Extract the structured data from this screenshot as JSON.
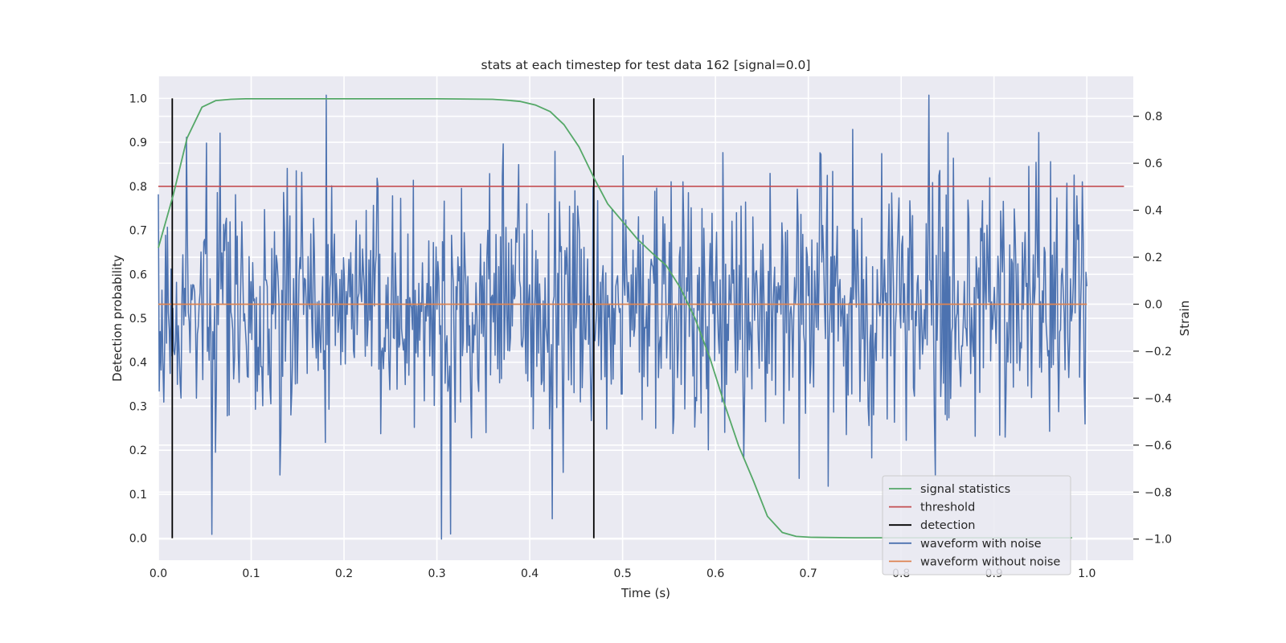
{
  "chart_data": {
    "type": "line",
    "title": "stats at each timestep for test data 162 [signal=0.0]",
    "xlabel": "Time (s)",
    "ylabel_left": "Detection probability",
    "ylabel_right": "Strain",
    "xlim": [
      0.0,
      1.05
    ],
    "ylim_left": [
      -0.05,
      1.05
    ],
    "ylim_right": [
      -1.09,
      0.97
    ],
    "x_ticks": [
      "0.0",
      "0.1",
      "0.2",
      "0.3",
      "0.4",
      "0.5",
      "0.6",
      "0.7",
      "0.8",
      "0.9",
      "1.0"
    ],
    "y_ticks_left": [
      "0.0",
      "0.1",
      "0.2",
      "0.3",
      "0.4",
      "0.5",
      "0.6",
      "0.7",
      "0.8",
      "0.9",
      "1.0"
    ],
    "y_ticks_right": [
      "−1.0",
      "−0.8",
      "−0.6",
      "−0.4",
      "−0.2",
      "0.0",
      "0.2",
      "0.4",
      "0.6",
      "0.8"
    ],
    "grid": true,
    "legend_position": "lower-right",
    "series": [
      {
        "name": "signal statistics",
        "axis": "left",
        "color": "#55a868",
        "x": [
          0.0,
          0.016,
          0.031,
          0.047,
          0.062,
          0.078,
          0.094,
          0.2,
          0.3,
          0.36,
          0.375,
          0.39,
          0.406,
          0.422,
          0.437,
          0.453,
          0.469,
          0.484,
          0.5,
          0.516,
          0.531,
          0.547,
          0.562,
          0.578,
          0.594,
          0.609,
          0.625,
          0.641,
          0.656,
          0.672,
          0.687,
          0.703,
          0.75,
          0.984
        ],
        "y": [
          0.66,
          0.78,
          0.91,
          0.98,
          0.995,
          0.998,
          0.999,
          0.999,
          0.999,
          0.998,
          0.996,
          0.993,
          0.985,
          0.97,
          0.94,
          0.89,
          0.82,
          0.76,
          0.72,
          0.68,
          0.65,
          0.62,
          0.57,
          0.5,
          0.41,
          0.31,
          0.21,
          0.13,
          0.05,
          0.013,
          0.004,
          0.002,
          0.001,
          0.001
        ]
      },
      {
        "name": "threshold",
        "axis": "left",
        "color": "#c44e52",
        "x": [
          0.0,
          1.04
        ],
        "y": [
          0.8,
          0.8
        ]
      },
      {
        "name": "detection",
        "axis": "left",
        "color": "#000000",
        "segments": [
          {
            "x": 0.015,
            "y": [
              0.0,
              1.0
            ]
          },
          {
            "x": 0.469,
            "y": [
              0.0,
              1.0
            ]
          }
        ]
      },
      {
        "name": "waveform with noise",
        "axis": "right",
        "color": "#4c72b0",
        "x_start": 0.0,
        "x_end": 1.0,
        "samples": 1024,
        "approx_std": 0.28,
        "y_range_shown": [
          -1.0,
          0.89
        ],
        "notable_points": [
          {
            "x": 0.181,
            "y": 0.89
          },
          {
            "x": 0.305,
            "y": -1.0
          },
          {
            "x": 0.058,
            "y": -0.98
          },
          {
            "x": 0.85,
            "y": 0.73
          }
        ]
      },
      {
        "name": "waveform without noise",
        "axis": "right",
        "color": "#dd8452",
        "x": [
          0.0,
          1.0
        ],
        "y": [
          0.0,
          0.0
        ]
      }
    ]
  }
}
